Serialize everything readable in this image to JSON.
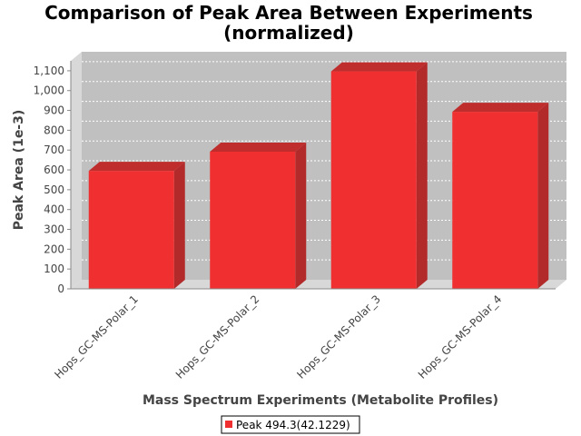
{
  "chart_data": {
    "type": "bar",
    "title": "Comparison of Peak Area Between Experiments",
    "subtitle": "(normalized)",
    "xlabel": "Mass Spectrum Experiments (Metabolite Profiles)",
    "ylabel": "Peak Area (1e-3)",
    "categories": [
      "Hops_GC-MS-Polar_1",
      "Hops_GC-MS-Polar_2",
      "Hops_GC-MS-Polar_3",
      "Hops_GC-MS-Polar_4"
    ],
    "series": [
      {
        "name": "Peak 494.3(42.1229)",
        "values": [
          595,
          692,
          1097,
          893
        ],
        "color": "#f03030"
      }
    ],
    "ylim": [
      0,
      1150
    ],
    "yticks": [
      0,
      100,
      200,
      300,
      400,
      500,
      600,
      700,
      800,
      900,
      1000,
      1100
    ],
    "ytick_labels": [
      "0",
      "100",
      "200",
      "300",
      "400",
      "500",
      "600",
      "700",
      "800",
      "900",
      "1,000",
      "1,100"
    ],
    "grid": true,
    "legend": "bottom"
  }
}
